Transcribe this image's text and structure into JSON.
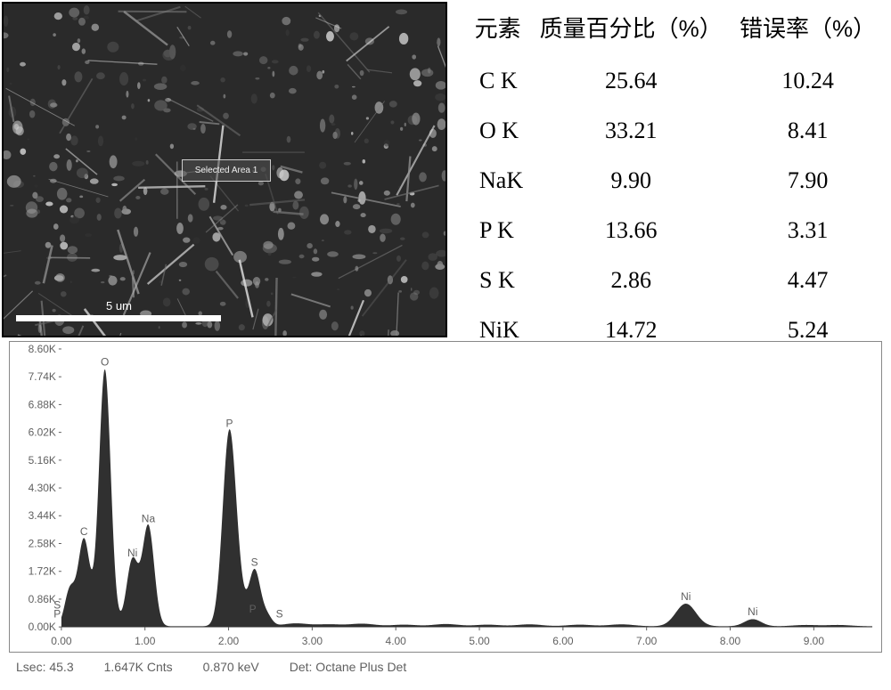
{
  "sem": {
    "scale_label": "5 um",
    "selected_area_label": "Selected Area 1",
    "background_color": "#2a2a2a",
    "texture_seed": 1,
    "border_color": "#000000"
  },
  "table": {
    "headers": [
      "元素",
      "质量百分比（%）",
      "错误率（%）"
    ],
    "rows": [
      {
        "element": "C K",
        "mass_pct": "25.64",
        "error": "10.24"
      },
      {
        "element": "O K",
        "mass_pct": "33.21",
        "error": "8.41"
      },
      {
        "element": "NaK",
        "mass_pct": "9.90",
        "error": "7.90"
      },
      {
        "element": "P K",
        "mass_pct": "13.66",
        "error": "3.31"
      },
      {
        "element": "S K",
        "mass_pct": "2.86",
        "error": "4.47"
      },
      {
        "element": "NiK",
        "mass_pct": "14.72",
        "error": "5.24"
      }
    ],
    "header_fontsize": 26,
    "cell_fontsize": 26
  },
  "spectrum": {
    "x_min": 0.0,
    "x_max": 9.7,
    "x_ticks": [
      0.0,
      1.0,
      2.0,
      3.0,
      4.0,
      5.0,
      6.0,
      7.0,
      8.0,
      9.0
    ],
    "y_max": 8.6,
    "y_ticks": [
      0.0,
      0.86,
      1.72,
      2.58,
      3.44,
      4.3,
      5.16,
      6.02,
      6.88,
      7.74,
      8.6
    ],
    "y_tick_labels": [
      "0.00K",
      "0.86K",
      "1.72K",
      "2.58K",
      "3.44K",
      "4.30K",
      "5.16K",
      "6.02K",
      "6.88K",
      "7.74K",
      "8.60K"
    ],
    "tick_fontsize": 12,
    "label_fontsize": 12,
    "tick_color": "#606060",
    "plot_background": "#ffffff",
    "fill_color": "#303030",
    "baseline": 0.02,
    "peaks": [
      {
        "x": 0.1,
        "height": 0.55,
        "width": 0.06,
        "label": "S",
        "label_side": "left",
        "label_offset": 0.02
      },
      {
        "x": 0.1,
        "height": 0.55,
        "width": 0.06,
        "label": "P",
        "label_side": "left",
        "label_offset": -0.25
      },
      {
        "x": 0.27,
        "height": 2.7,
        "width": 0.07,
        "label": "C",
        "label_side": "top",
        "label_offset": 0
      },
      {
        "x": 0.52,
        "height": 7.95,
        "width": 0.07,
        "label": "O",
        "label_side": "top",
        "label_offset": 0
      },
      {
        "x": 0.85,
        "height": 2.05,
        "width": 0.07,
        "label": "Ni",
        "label_side": "top",
        "label_offset": 0
      },
      {
        "x": 1.04,
        "height": 3.1,
        "width": 0.07,
        "label": "Na",
        "label_side": "top",
        "label_offset": 0
      },
      {
        "x": 2.01,
        "height": 6.05,
        "width": 0.08,
        "label": "P",
        "label_side": "top",
        "label_offset": 0
      },
      {
        "x": 2.14,
        "height": 0.5,
        "width": 0.06,
        "label": "P",
        "label_side": "right",
        "label_offset": -0.05
      },
      {
        "x": 2.31,
        "height": 1.75,
        "width": 0.07,
        "label": "S",
        "label_side": "top",
        "label_offset": 0
      },
      {
        "x": 2.46,
        "height": 0.3,
        "width": 0.06,
        "label": "S",
        "label_side": "right",
        "label_offset": 0
      },
      {
        "x": 7.47,
        "height": 0.7,
        "width": 0.12,
        "label": "Ni",
        "label_side": "top",
        "label_offset": 0
      },
      {
        "x": 8.27,
        "height": 0.22,
        "width": 0.1,
        "label": "Ni",
        "label_side": "top",
        "label_offset": 0
      }
    ],
    "noise_floor": [
      {
        "x": 2.8,
        "h": 0.09
      },
      {
        "x": 3.2,
        "h": 0.06
      },
      {
        "x": 3.6,
        "h": 0.08
      },
      {
        "x": 4.1,
        "h": 0.05
      },
      {
        "x": 4.6,
        "h": 0.07
      },
      {
        "x": 5.1,
        "h": 0.05
      },
      {
        "x": 5.6,
        "h": 0.06
      },
      {
        "x": 6.2,
        "h": 0.05
      },
      {
        "x": 6.7,
        "h": 0.06
      },
      {
        "x": 8.9,
        "h": 0.04
      },
      {
        "x": 9.3,
        "h": 0.04
      }
    ]
  },
  "footer": {
    "items": [
      "Lsec: 45.3",
      "1.647K Cnts",
      "0.870 keV",
      "Det: Octane Plus Det"
    ],
    "color": "#606060",
    "fontsize": 14
  }
}
